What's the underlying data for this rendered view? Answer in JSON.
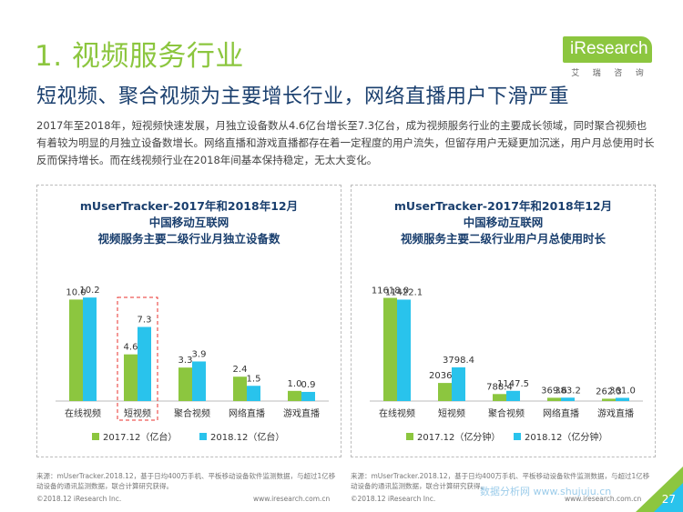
{
  "section_title": "1. 视频服务行业",
  "logo": {
    "brand": "iResearch",
    "sub": [
      "艾",
      "瑞",
      "咨",
      "询"
    ]
  },
  "headline": "短视频、聚合视频为主要增长行业，网络直播用户下滑严重",
  "description": "2017年至2018年，短视频快速发展，月独立设备数从4.6亿台增长至7.3亿台，成为视频服务行业的主要成长领域，同时聚合视频也有着较为明显的月独立设备数增长。网络直播和游戏直播都存在着一定程度的用户流失，但留存用户无疑更加沉迷，用户月总使用时长反而保持增长。而在线视频行业在2018年间基本保持稳定，无太大变化。",
  "colors": {
    "accent": "#8cc63f",
    "series_2017": "#8cc63f",
    "series_2018": "#29c3ec",
    "title": "#1a3f6e",
    "highlight_box": "#e8312d"
  },
  "chart_data": [
    {
      "type": "bar",
      "title": "mUserTracker-2017年和2018年12月\n中国移动互联网\n视频服务主要二级行业月独立设备数",
      "categories": [
        "在线视频",
        "短视频",
        "聚合视频",
        "网络直播",
        "游戏直播"
      ],
      "series": [
        {
          "name": "2017.12（亿台）",
          "values": [
            10.0,
            4.6,
            3.3,
            2.4,
            1.0
          ]
        },
        {
          "name": "2018.12（亿台）",
          "values": [
            10.2,
            7.3,
            3.9,
            1.5,
            0.9
          ]
        }
      ],
      "value_labels": [
        [
          "10.0",
          "4.6",
          "3.3",
          "2.4",
          "1.0"
        ],
        [
          "10.2",
          "7.3",
          "3.9",
          "1.5",
          "0.9"
        ]
      ],
      "ylim": [
        0,
        11.2
      ],
      "highlight_category": "短视频",
      "grid": false,
      "legend": "bottom"
    },
    {
      "type": "bar",
      "title": "mUserTracker-2017年和2018年12月\n中国移动互联网\n视频服务主要二级行业用户月总使用时长",
      "categories": [
        "在线视频",
        "短视频",
        "聚合视频",
        "网络直播",
        "游戏直播"
      ],
      "series": [
        {
          "name": "2017.12（亿分钟）",
          "values": [
            11618.0,
            2036.9,
            788.4,
            369.6,
            262.3
          ]
        },
        {
          "name": "2018.12（亿分钟）",
          "values": [
            11422.1,
            3798.4,
            1147.5,
            383.2,
            361.0
          ]
        }
      ],
      "value_labels": [
        [
          "11618.0",
          "2036.9",
          "788.4",
          "369.6",
          "262.3"
        ],
        [
          "11422.1",
          "3798.4",
          "1147.5",
          "383.2",
          "361.0"
        ]
      ],
      "ylim": [
        0,
        12800
      ],
      "grid": false,
      "legend": "bottom"
    }
  ],
  "sources": [
    "来源：mUserTracker.2018.12，基于日均400万手机、平板移动设备软件监测数据，与超过1亿移动设备的通讯监测数据，联合计算研究获得。",
    "来源：mUserTracker.2018.12，基于日均400万手机、平板移动设备软件监测数据，与超过1亿移动设备的通讯监测数据，联合计算研究获得。"
  ],
  "footer": {
    "copyright": "©2018.12 iResearch Inc.",
    "url": "www.iresearch.com.cn"
  },
  "page_number": "27",
  "watermark": "数据分析网 www.shujuju.cn"
}
